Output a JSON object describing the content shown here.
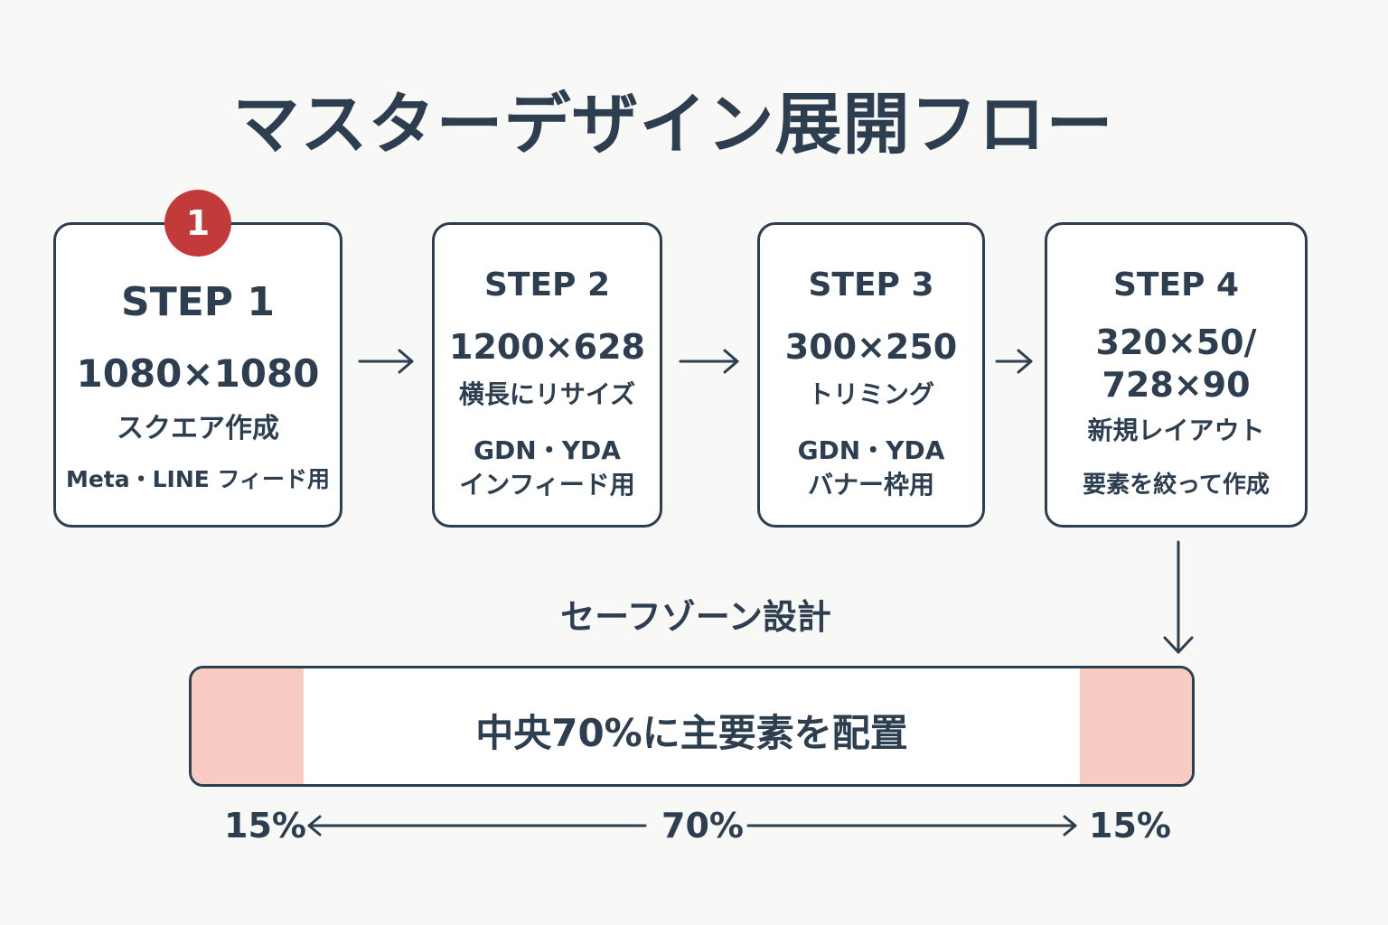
{
  "title": "マスターデザイン展開フロー",
  "badge": "1",
  "steps": [
    {
      "step": "STEP 1",
      "size": "1080×1080",
      "desc": "スクエア作成",
      "note": "Meta・LINE フィード用"
    },
    {
      "step": "STEP 2",
      "size": "1200×628",
      "desc": "横長にリサイズ",
      "note1": "GDN・YDA",
      "note2": "インフィード用"
    },
    {
      "step": "STEP 3",
      "size": "300×250",
      "desc": "トリミング",
      "note1": "GDN・YDA",
      "note2": "バナー枠用"
    },
    {
      "step": "STEP 4",
      "size1": "320×50/",
      "size2": "728×90",
      "desc": "新規レイアウト",
      "note": "要素を絞って作成"
    }
  ],
  "safe_zone": {
    "label": "セーフゾーン設計",
    "center_text": "中央70%に主要素を配置",
    "left_pct": "15%",
    "center_pct": "70%",
    "right_pct": "15%"
  },
  "colors": {
    "ink": "#2c3e4f",
    "badge": "#c23a3a",
    "margin_zone": "#f8cbc3",
    "background": "#f8f8f6"
  }
}
